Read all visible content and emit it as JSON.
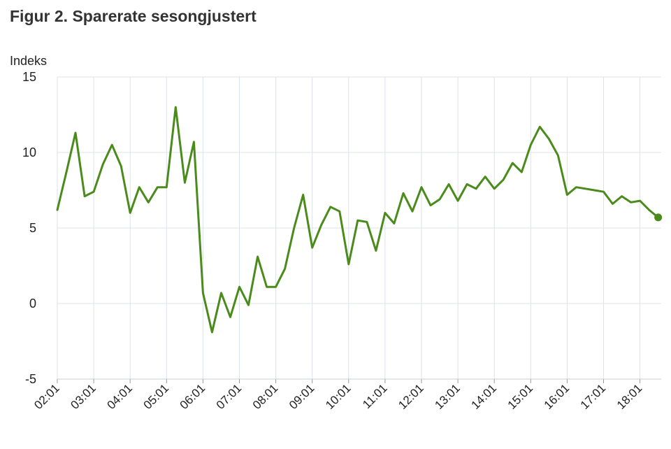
{
  "title": "Figur 2. Sparerate sesongjustert",
  "chart_data": {
    "type": "line",
    "title": "Figur 2. Sparerate sesongjustert",
    "ylabel": "Indeks",
    "xlabel": "",
    "ylim": [
      -5,
      15
    ],
    "yticks": [
      -5,
      0,
      5,
      10,
      15
    ],
    "xticks": [
      "02:01",
      "03:01",
      "04:01",
      "05:01",
      "06:01",
      "07:01",
      "08:01",
      "09:01",
      "10:01",
      "11:01",
      "12:01",
      "13:01",
      "14:01",
      "15:01",
      "16:01",
      "17:01",
      "18:01"
    ],
    "grid": true,
    "line_color": "#4a8b1c",
    "series": [
      {
        "x": [
          "02:01",
          "02:02",
          "02:03",
          "02:04",
          "03:01",
          "03:02",
          "03:03",
          "03:04",
          "04:01",
          "04:02",
          "04:03",
          "04:04",
          "05:01",
          "05:02",
          "05:03",
          "05:04",
          "06:01",
          "06:02",
          "06:03",
          "06:04",
          "07:01",
          "07:02",
          "07:03",
          "07:04",
          "08:01",
          "08:02",
          "08:03",
          "08:04",
          "09:01",
          "09:02",
          "09:03",
          "09:04",
          "10:01",
          "10:02",
          "10:03",
          "10:04",
          "11:01",
          "11:02",
          "11:03",
          "11:04",
          "12:01",
          "12:02",
          "12:03",
          "12:04",
          "13:01",
          "13:02",
          "13:03",
          "13:04",
          "14:01",
          "14:02",
          "14:03",
          "14:04",
          "15:01",
          "15:02",
          "15:03",
          "15:04",
          "16:01",
          "16:02",
          "16:03",
          "16:04",
          "17:01",
          "17:02",
          "17:03",
          "17:04",
          "18:01",
          "18:02",
          "18:03"
        ],
        "values": [
          6.2,
          8.7,
          11.3,
          7.1,
          7.4,
          9.2,
          10.5,
          9.1,
          6.0,
          7.7,
          6.7,
          7.7,
          7.7,
          13.0,
          8.0,
          10.7,
          0.7,
          -1.9,
          0.7,
          -0.9,
          1.1,
          -0.1,
          3.1,
          1.1,
          1.1,
          2.3,
          5.0,
          7.2,
          3.7,
          5.2,
          6.4,
          6.1,
          2.6,
          5.5,
          5.4,
          3.5,
          6.0,
          5.3,
          7.3,
          6.1,
          7.7,
          6.5,
          6.9,
          7.9,
          6.8,
          7.9,
          7.6,
          8.4,
          7.6,
          8.2,
          9.3,
          8.7,
          10.5,
          11.7,
          10.9,
          9.8,
          7.2,
          7.7,
          7.6,
          7.5,
          7.4,
          6.6,
          7.1,
          6.7,
          6.8,
          6.2,
          5.7
        ]
      }
    ]
  }
}
